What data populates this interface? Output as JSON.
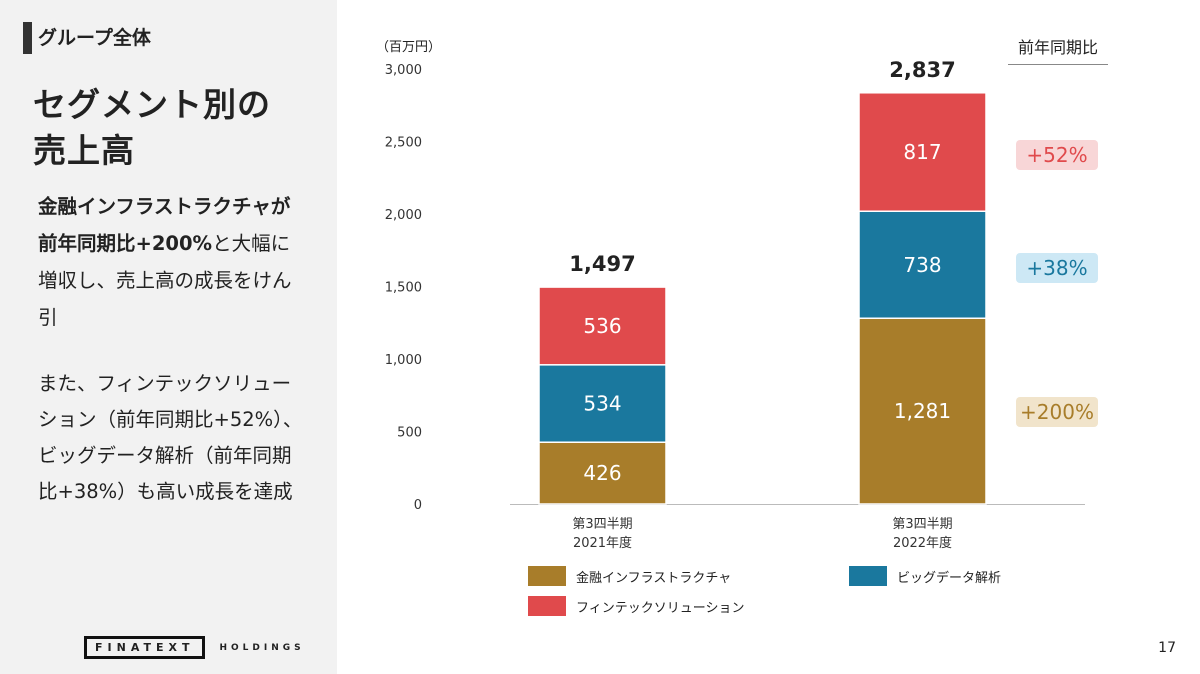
{
  "left": {
    "breadcrumb": "グループ全体",
    "title_line1": "セグメント別の",
    "title_line2": "売上高",
    "body1_bold": "金融インフラストラクチャが前年同期比+200%",
    "body1_rest": "と大幅に増収し、売上高の成長をけん引",
    "body2": "また、フィンテックソリューション（前年同期比+52%）、ビッグデータ解析（前年同期比+38%）も高い成長を達成",
    "logo": "FINATEXT HOLDINGS",
    "logo_box": "FINATEXT",
    "logo_rest": "HOLDINGS"
  },
  "page_number": "17",
  "chart_data": {
    "type": "bar",
    "stacked": true,
    "unit": "（百万円）",
    "ylim": [
      0,
      3000
    ],
    "yticks": [
      "0",
      "500",
      "1,000",
      "1,500",
      "2,000",
      "2,500",
      "3,000"
    ],
    "categories": [
      [
        "第3四半期",
        "2021年度"
      ],
      [
        "第3四半期",
        "2022年度"
      ]
    ],
    "totals": [
      "1,497",
      "2,837"
    ],
    "series": [
      {
        "name": "金融インフラストラクチャ",
        "color": "#A87D2A",
        "values": [
          426,
          1281
        ],
        "labels": [
          "426",
          "1,281"
        ]
      },
      {
        "name": "ビッグデータ解析",
        "color": "#1A789E",
        "values": [
          534,
          738
        ],
        "labels": [
          "534",
          "738"
        ]
      },
      {
        "name": "フィンテックソリューション",
        "color": "#E04A4C",
        "values": [
          536,
          817
        ],
        "labels": [
          "536",
          "817"
        ]
      }
    ],
    "yoy_header": "前年同期比",
    "yoy": [
      {
        "label": "+52%",
        "bg": "#F8D6D7",
        "color": "#E04A4C"
      },
      {
        "label": "+38%",
        "bg": "#CDE8F5",
        "color": "#1A789E"
      },
      {
        "label": "+200%",
        "bg": "#F1E4CB",
        "color": "#A87D2A"
      }
    ]
  }
}
